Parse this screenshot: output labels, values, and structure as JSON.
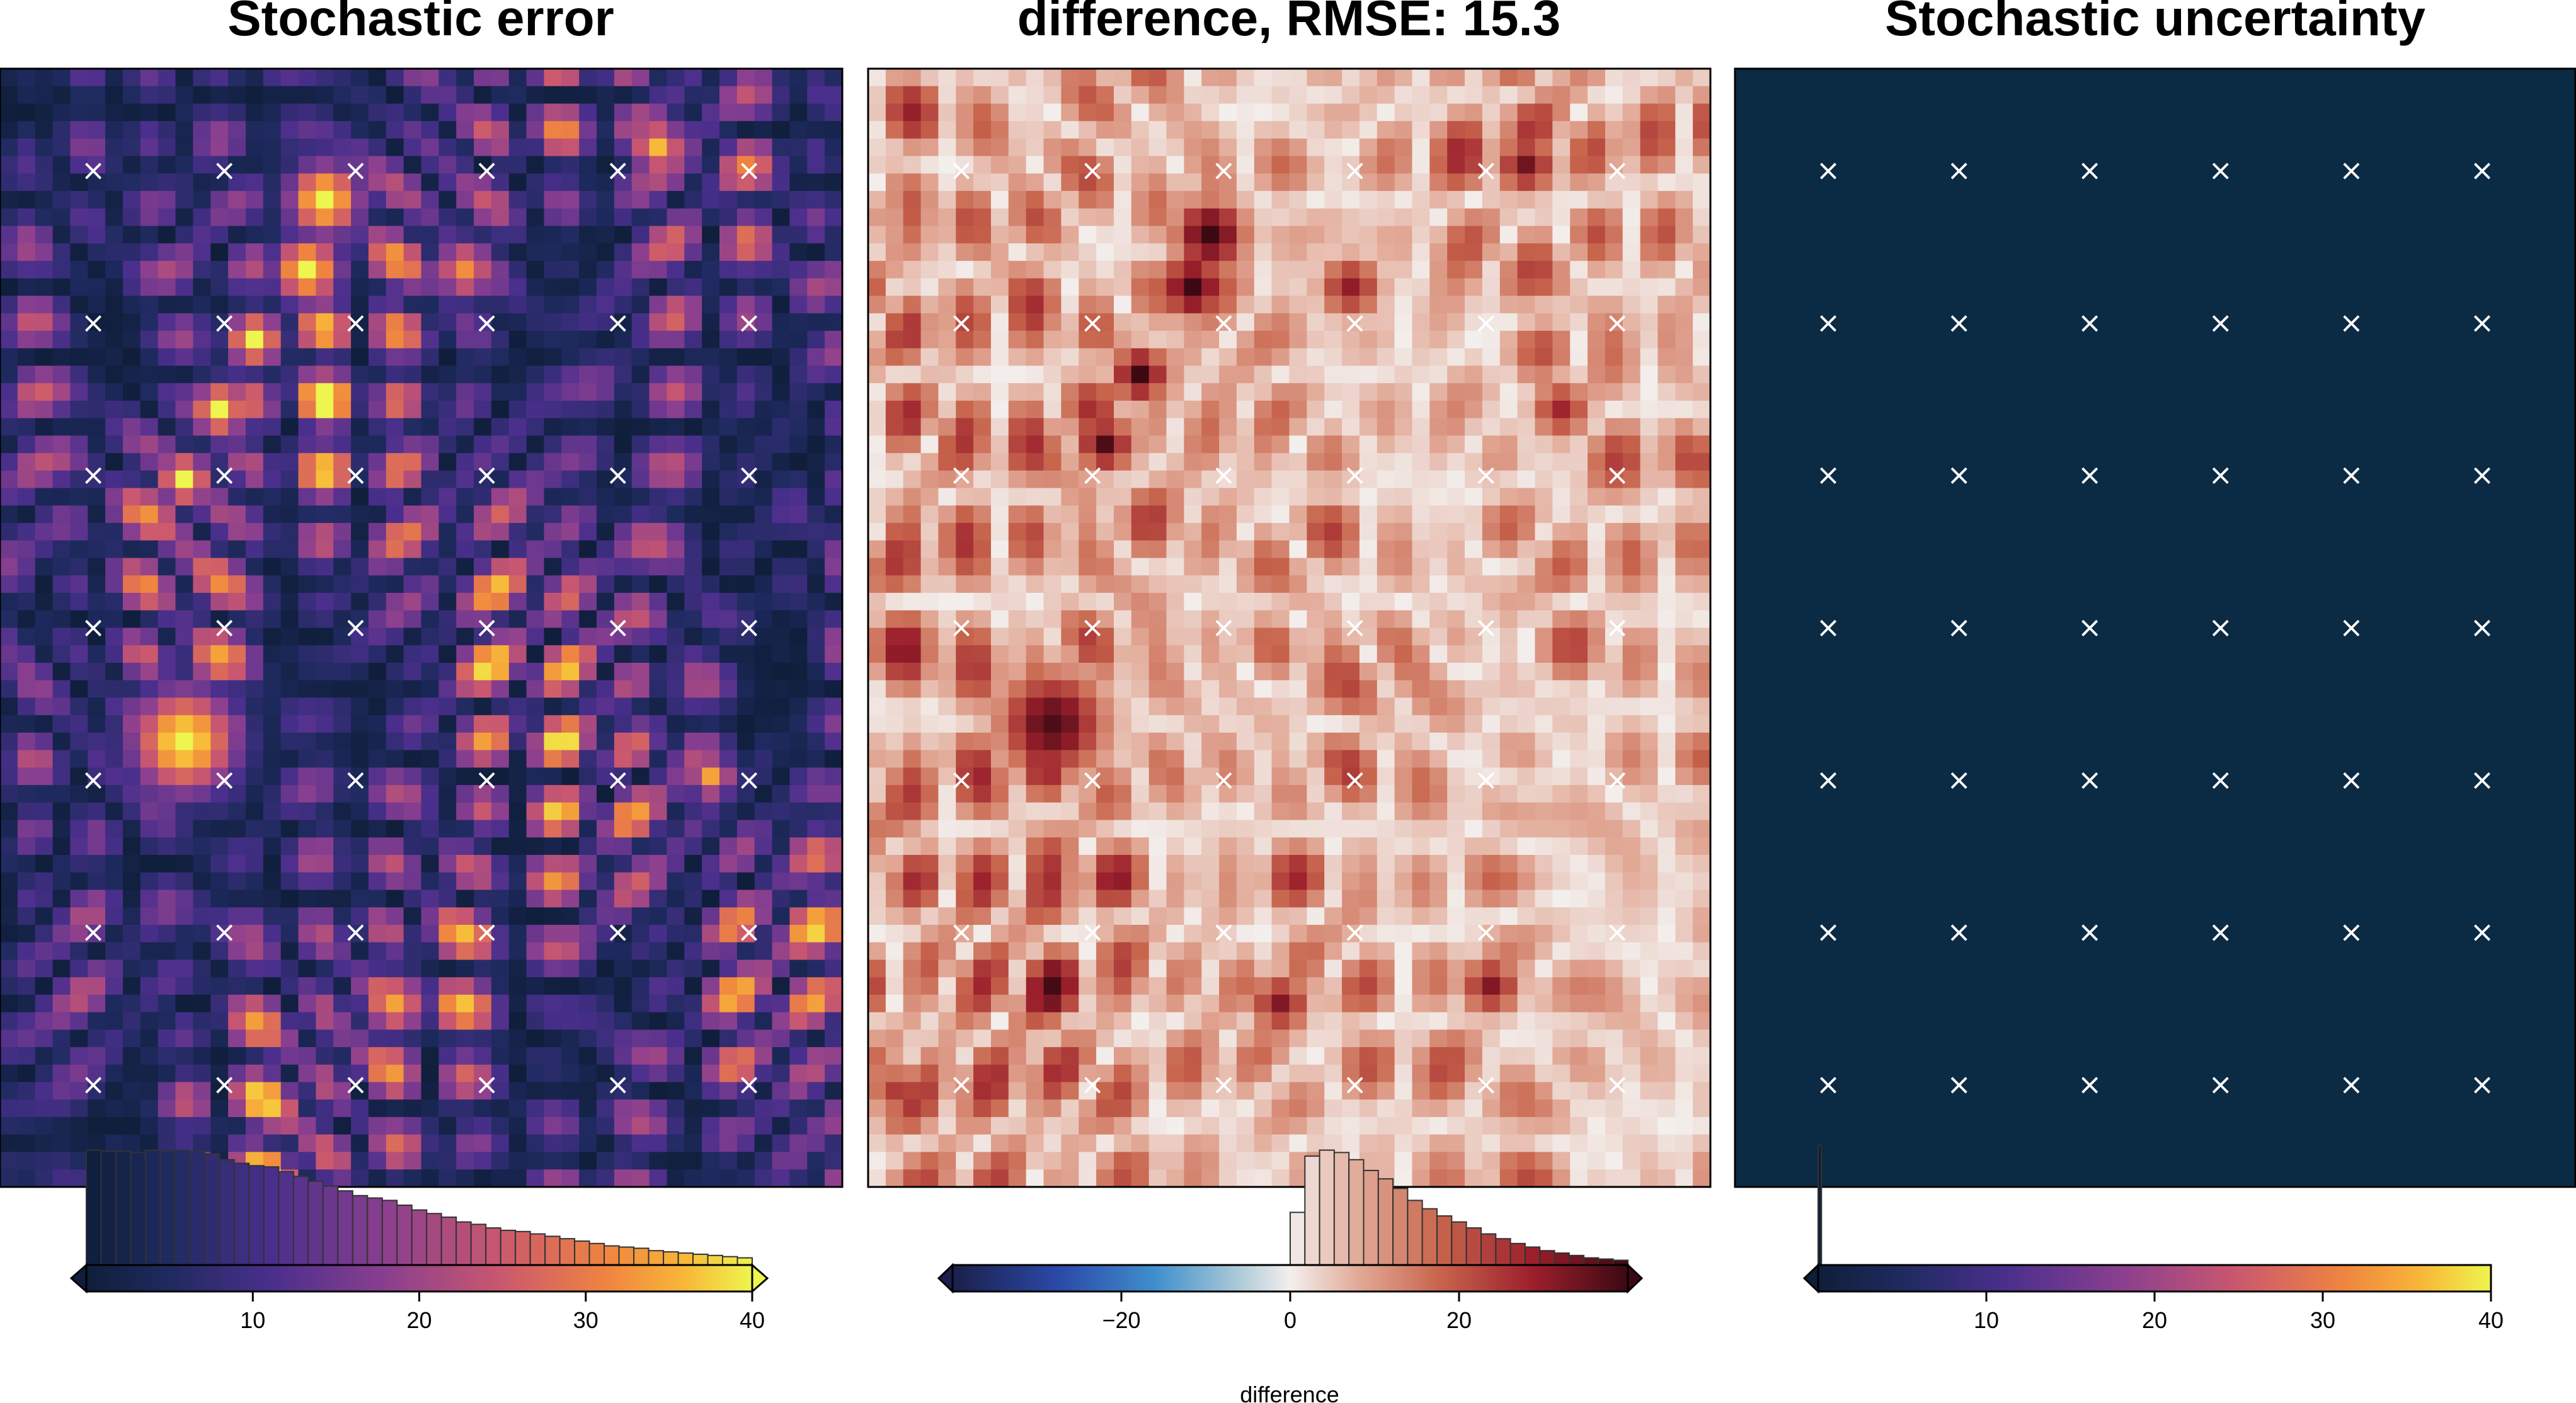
{
  "chart_data": [
    {
      "type": "heatmap",
      "title": "Stochastic error",
      "colormap": "plasma-like (dark navy → purple → orange → yellow)",
      "colorbar": {
        "range": [
          0,
          40
        ],
        "ticks": [
          "10",
          "20",
          "30",
          "40"
        ],
        "label": "",
        "extend": "both",
        "histogram": [
          0.96,
          0.95,
          0.95,
          0.94,
          0.96,
          0.95,
          0.96,
          0.95,
          0.93,
          0.88,
          0.85,
          0.83,
          0.82,
          0.78,
          0.74,
          0.7,
          0.66,
          0.62,
          0.58,
          0.56,
          0.54,
          0.5,
          0.46,
          0.43,
          0.4,
          0.36,
          0.34,
          0.31,
          0.29,
          0.28,
          0.26,
          0.24,
          0.22,
          0.2,
          0.18,
          0.16,
          0.15,
          0.14,
          0.12,
          0.11,
          0.1,
          0.09,
          0.08,
          0.07,
          0.06
        ]
      },
      "markers": {
        "symbol": "×",
        "columns": 6,
        "rows": 7
      }
    },
    {
      "type": "heatmap",
      "title": "difference, RMSE: 15.3",
      "colormap": "balance (blue → white → dark red)",
      "colorbar": {
        "range": [
          -40,
          40
        ],
        "ticks": [
          "−20",
          "0",
          "20"
        ],
        "tick_values": [
          -20,
          0,
          20
        ],
        "label": "difference",
        "extend": "both",
        "histogram": [
          0.44,
          0.91,
          0.96,
          0.94,
          0.88,
          0.79,
          0.72,
          0.64,
          0.54,
          0.47,
          0.41,
          0.36,
          0.31,
          0.26,
          0.22,
          0.18,
          0.15,
          0.12,
          0.1,
          0.08,
          0.06,
          0.05,
          0.04
        ]
      },
      "markers": {
        "symbol": "×",
        "columns": 6,
        "rows": 7
      }
    },
    {
      "type": "heatmap",
      "title": "Stochastic uncertainty",
      "colormap": "plasma-like",
      "fill_color": "#0b2a44",
      "colorbar": {
        "range": [
          0,
          40
        ],
        "ticks": [
          "10",
          "20",
          "30",
          "40"
        ],
        "label": "",
        "extend": "left",
        "histogram": [
          1.0
        ]
      },
      "markers": {
        "symbol": "×",
        "columns": 6,
        "rows": 7
      }
    }
  ],
  "colors": {
    "marker": "#ffffff",
    "uniform_panel": "#0b2a44",
    "background": "#ffffff"
  }
}
